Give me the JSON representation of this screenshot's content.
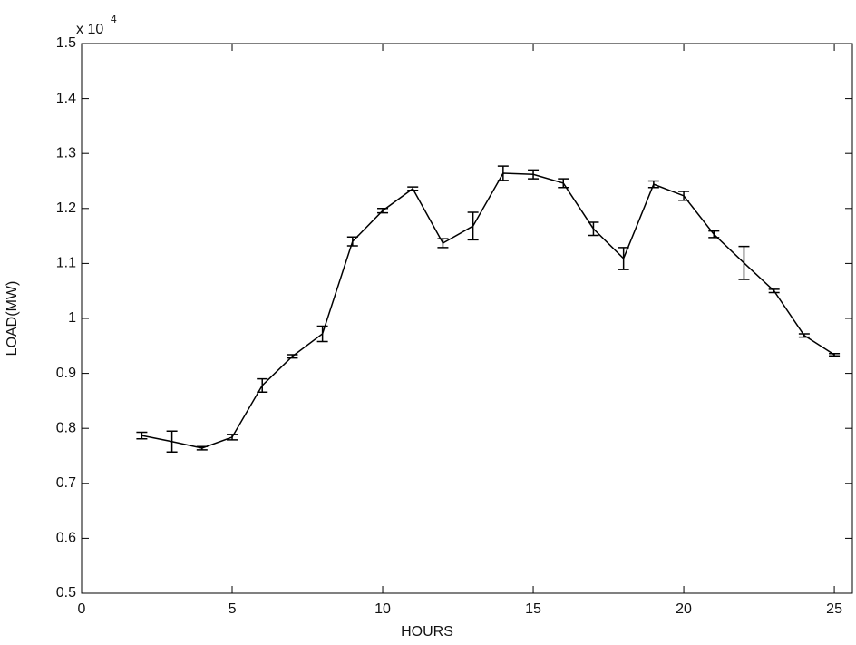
{
  "chart_data": {
    "type": "errorbar",
    "xlabel": "HOURS",
    "ylabel": "LOAD(MW)",
    "y_multiplier": "x 10",
    "y_exponent": "4",
    "x": [
      2,
      3,
      4,
      5,
      6,
      7,
      8,
      9,
      10,
      11,
      12,
      13,
      14,
      15,
      16,
      17,
      18,
      19,
      20,
      21,
      22,
      23,
      24,
      25
    ],
    "series": [
      {
        "color": "#000000",
        "values": [
          0.787,
          0.776,
          0.764,
          0.784,
          0.878,
          0.931,
          0.972,
          1.14,
          1.196,
          1.236,
          1.137,
          1.168,
          1.264,
          1.262,
          1.246,
          1.163,
          1.109,
          1.244,
          1.223,
          1.153,
          1.101,
          1.05,
          0.969,
          0.934
        ],
        "errors": [
          0.006,
          0.019,
          0.003,
          0.005,
          0.012,
          0.003,
          0.014,
          0.008,
          0.004,
          0.003,
          0.008,
          0.025,
          0.013,
          0.008,
          0.008,
          0.012,
          0.02,
          0.006,
          0.008,
          0.006,
          0.03,
          0.003,
          0.003,
          0.002
        ]
      }
    ],
    "xlim": [
      0,
      25.6
    ],
    "xticks": [
      0,
      5,
      10,
      15,
      20,
      25
    ],
    "ylim": [
      0.5,
      1.5
    ],
    "yticks": [
      0.5,
      0.6,
      0.7,
      0.8,
      0.9,
      1,
      1.1,
      1.2,
      1.3,
      1.4,
      1.5
    ],
    "grid": false
  }
}
